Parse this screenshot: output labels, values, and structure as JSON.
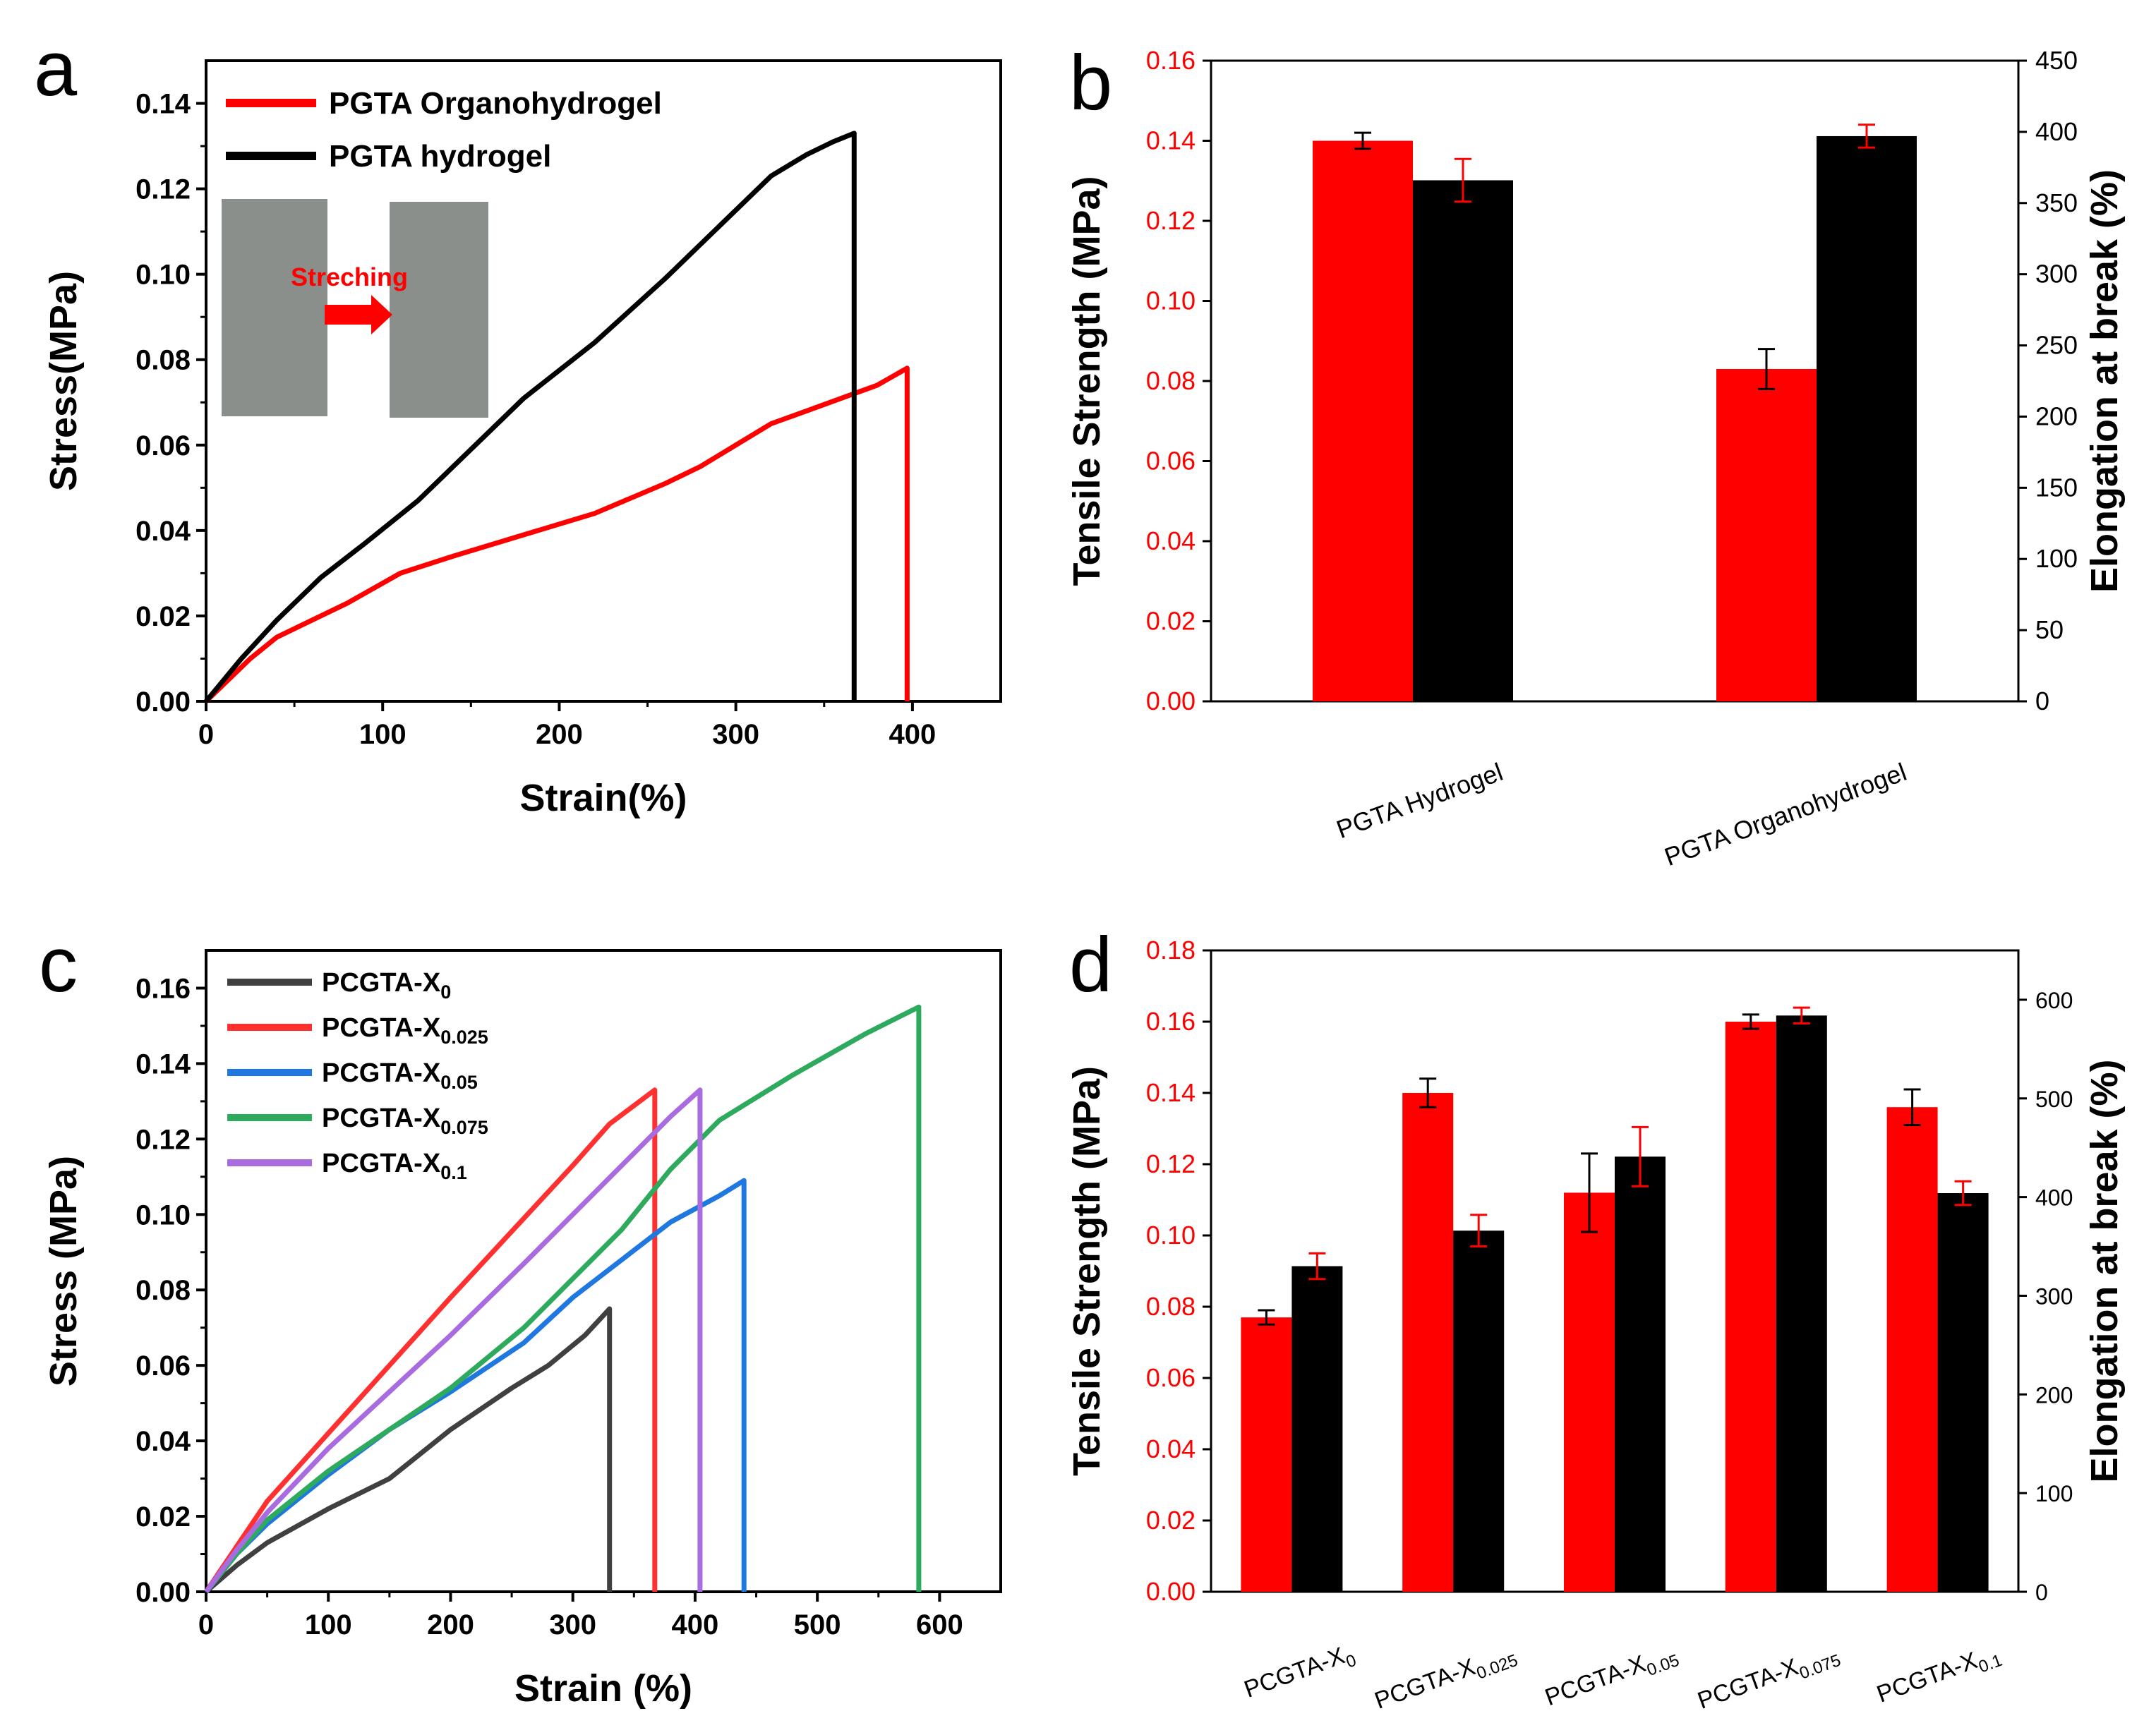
{
  "chart_data": [
    {
      "panel": "a",
      "type": "line",
      "xlabel": "Strain(%)",
      "ylabel": "Stress(MPa)",
      "xlim": [
        0,
        450
      ],
      "ylim": [
        0,
        0.15
      ],
      "xticks": [
        0,
        100,
        200,
        300,
        400
      ],
      "yticks": [
        0.0,
        0.02,
        0.04,
        0.06,
        0.08,
        0.1,
        0.12,
        0.14
      ],
      "legend_position": "top-left",
      "inset_label": "Streching",
      "series": [
        {
          "name": "PGTA Organohydrogel",
          "color": "#ff0000",
          "x": [
            0,
            10,
            25,
            40,
            55,
            80,
            110,
            140,
            180,
            220,
            260,
            280,
            300,
            320,
            340,
            360,
            380,
            397,
            397
          ],
          "y": [
            0,
            0.004,
            0.01,
            0.015,
            0.018,
            0.023,
            0.03,
            0.034,
            0.039,
            0.044,
            0.051,
            0.055,
            0.06,
            0.065,
            0.068,
            0.071,
            0.074,
            0.078,
            0
          ]
        },
        {
          "name": "PGTA hydrogel",
          "color": "#000000",
          "x": [
            0,
            20,
            40,
            65,
            90,
            120,
            150,
            180,
            220,
            260,
            290,
            320,
            340,
            355,
            367,
            367
          ],
          "y": [
            0,
            0.01,
            0.019,
            0.029,
            0.037,
            0.047,
            0.059,
            0.071,
            0.084,
            0.099,
            0.111,
            0.123,
            0.128,
            0.131,
            0.133,
            0
          ]
        }
      ]
    },
    {
      "panel": "b",
      "type": "bar",
      "categories": [
        "PGTA Hydrogel",
        "PGTA Organohydrogel"
      ],
      "ylabel": "Tensile Strength (MPa)",
      "ylabel_right": "Elongation at break (%)",
      "ylim": [
        0,
        0.16
      ],
      "ylim_right": [
        0,
        450
      ],
      "yticks": [
        0.0,
        0.02,
        0.04,
        0.06,
        0.08,
        0.1,
        0.12,
        0.14,
        0.16
      ],
      "yticks_right": [
        0,
        50,
        100,
        150,
        200,
        250,
        300,
        350,
        400,
        450
      ],
      "series": [
        {
          "name": "Tensile Strength",
          "axis": "left",
          "color": "#ff0000",
          "values": [
            0.14,
            0.083
          ],
          "errors": [
            0.002,
            0.005
          ]
        },
        {
          "name": "Elongation at break",
          "axis": "right",
          "color": "#000000",
          "values": [
            366,
            397
          ],
          "errors": [
            15,
            8
          ]
        }
      ]
    },
    {
      "panel": "c",
      "type": "line",
      "xlabel": "Strain (%)",
      "ylabel": "Stress (MPa)",
      "xlim": [
        0,
        650
      ],
      "ylim": [
        0,
        0.17
      ],
      "xticks": [
        0,
        100,
        200,
        300,
        400,
        500,
        600
      ],
      "yticks": [
        0.0,
        0.02,
        0.04,
        0.06,
        0.08,
        0.1,
        0.12,
        0.14,
        0.16
      ],
      "legend_position": "top-left",
      "series": [
        {
          "name": "PCGTA-X",
          "sub": "0",
          "color": "#404040",
          "x": [
            0,
            25,
            50,
            100,
            150,
            200,
            250,
            280,
            310,
            330,
            330
          ],
          "y": [
            0,
            0.007,
            0.013,
            0.022,
            0.03,
            0.043,
            0.054,
            0.06,
            0.068,
            0.075,
            0
          ]
        },
        {
          "name": "PCGTA-X",
          "sub": "0.025",
          "color": "#ff3030",
          "x": [
            0,
            25,
            50,
            100,
            150,
            200,
            260,
            300,
            330,
            367,
            367
          ],
          "y": [
            0,
            0.012,
            0.024,
            0.042,
            0.06,
            0.078,
            0.099,
            0.113,
            0.124,
            0.133,
            0
          ]
        },
        {
          "name": "PCGTA-X",
          "sub": "0.05",
          "color": "#1f77e0",
          "x": [
            0,
            25,
            50,
            100,
            150,
            200,
            260,
            300,
            340,
            380,
            420,
            440,
            440
          ],
          "y": [
            0,
            0.01,
            0.018,
            0.031,
            0.043,
            0.053,
            0.066,
            0.078,
            0.088,
            0.098,
            0.105,
            0.109,
            0
          ]
        },
        {
          "name": "PCGTA-X",
          "sub": "0.075",
          "color": "#2eaa5e",
          "x": [
            0,
            25,
            50,
            100,
            150,
            200,
            260,
            300,
            340,
            380,
            420,
            480,
            540,
            583,
            583
          ],
          "y": [
            0,
            0.01,
            0.019,
            0.032,
            0.043,
            0.054,
            0.07,
            0.083,
            0.096,
            0.112,
            0.125,
            0.137,
            0.148,
            0.155,
            0
          ]
        },
        {
          "name": "PCGTA-X",
          "sub": "0.1",
          "color": "#a86ce0",
          "x": [
            0,
            25,
            50,
            100,
            150,
            200,
            260,
            300,
            340,
            380,
            404,
            404
          ],
          "y": [
            0,
            0.011,
            0.021,
            0.038,
            0.053,
            0.068,
            0.087,
            0.1,
            0.113,
            0.126,
            0.133,
            0
          ]
        }
      ]
    },
    {
      "panel": "d",
      "type": "bar",
      "categories": [
        {
          "base": "PCGTA-X",
          "sub": "0"
        },
        {
          "base": "PCGTA-X",
          "sub": "0.025"
        },
        {
          "base": "PCGTA-X",
          "sub": "0.05"
        },
        {
          "base": "PCGTA-X",
          "sub": "0.075"
        },
        {
          "base": "PCGTA-X",
          "sub": "0.1"
        }
      ],
      "ylabel": "Tensile Strength (MPa)",
      "ylabel_right": "Elongation at break (%)",
      "ylim": [
        0,
        0.18
      ],
      "ylim_right": [
        0,
        650
      ],
      "yticks": [
        0.0,
        0.02,
        0.04,
        0.06,
        0.08,
        0.1,
        0.12,
        0.14,
        0.16,
        0.18
      ],
      "yticks_right": [
        0,
        100,
        200,
        300,
        400,
        500,
        600
      ],
      "series": [
        {
          "name": "Tensile Strength",
          "axis": "left",
          "color": "#ff0000",
          "values": [
            0.077,
            0.14,
            0.112,
            0.16,
            0.136
          ],
          "errors": [
            0.002,
            0.004,
            0.011,
            0.002,
            0.005
          ]
        },
        {
          "name": "Elongation at break",
          "axis": "right",
          "color": "#000000",
          "values": [
            330,
            366,
            441,
            584,
            404
          ],
          "errors": [
            13,
            16,
            30,
            8,
            12
          ]
        }
      ]
    }
  ],
  "labels": {
    "panel_a": "a",
    "panel_b": "b",
    "panel_c": "c",
    "panel_d": "d",
    "inset": "Streching"
  },
  "colors": {
    "red_text": "#ff0000",
    "inset_photo": "#8a8f8c"
  }
}
